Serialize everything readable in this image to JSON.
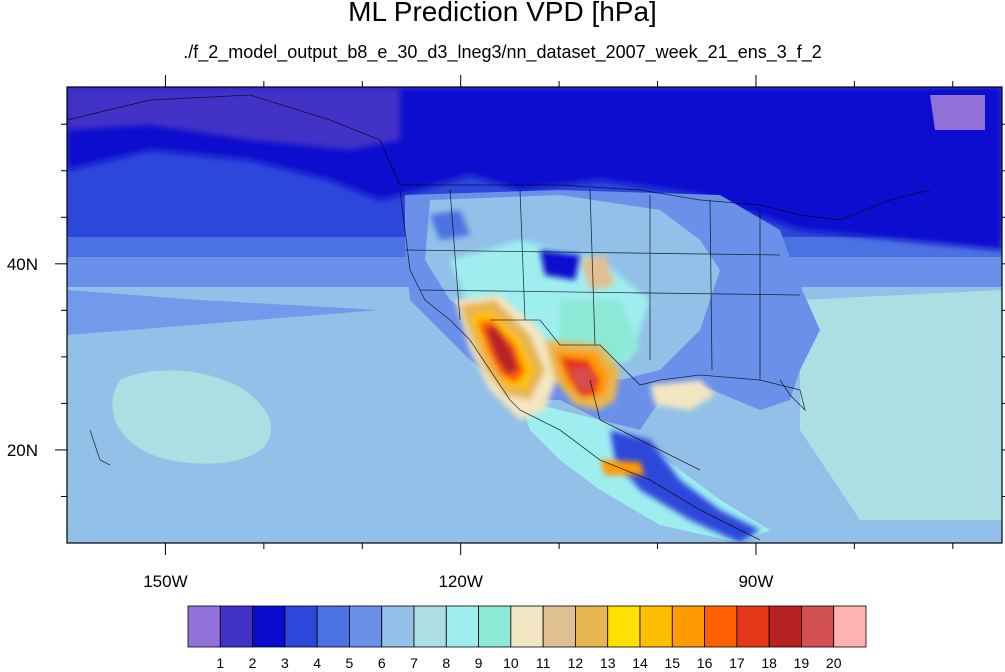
{
  "title": "ML Prediction VPD [hPa]",
  "subtitle": "./f_2_model_output_b8_e_30_d3_lneg3/nn_dataset_2007_week_21_ens_3_f_2",
  "map": {
    "lon_range": [
      -160,
      -65
    ],
    "lat_range": [
      10,
      59
    ],
    "lon_ticks": [
      {
        "value": -150,
        "label": "150W"
      },
      {
        "value": -120,
        "label": "120W"
      },
      {
        "value": -90,
        "label": "90W"
      }
    ],
    "lat_ticks": [
      {
        "value": 40,
        "label": "40N"
      },
      {
        "value": 20,
        "label": "20N"
      }
    ]
  },
  "colorbar": {
    "colors": [
      "#9170d8",
      "#4332c8",
      "#0b0bcf",
      "#2d46db",
      "#4b71e3",
      "#6b90ea",
      "#92c0e8",
      "#acdee4",
      "#9eeef0",
      "#8ee8d6",
      "#f3e6c2",
      "#e0c093",
      "#e7b651",
      "#ffe000",
      "#ffbf00",
      "#ff9a00",
      "#ff6000",
      "#e53818",
      "#b82226",
      "#d25050",
      "#ffb2b2"
    ],
    "labels": [
      "1",
      "2",
      "3",
      "4",
      "5",
      "6",
      "7",
      "8",
      "9",
      "10",
      "11",
      "12",
      "13",
      "14",
      "15",
      "16",
      "17",
      "18",
      "19",
      "20"
    ]
  }
}
